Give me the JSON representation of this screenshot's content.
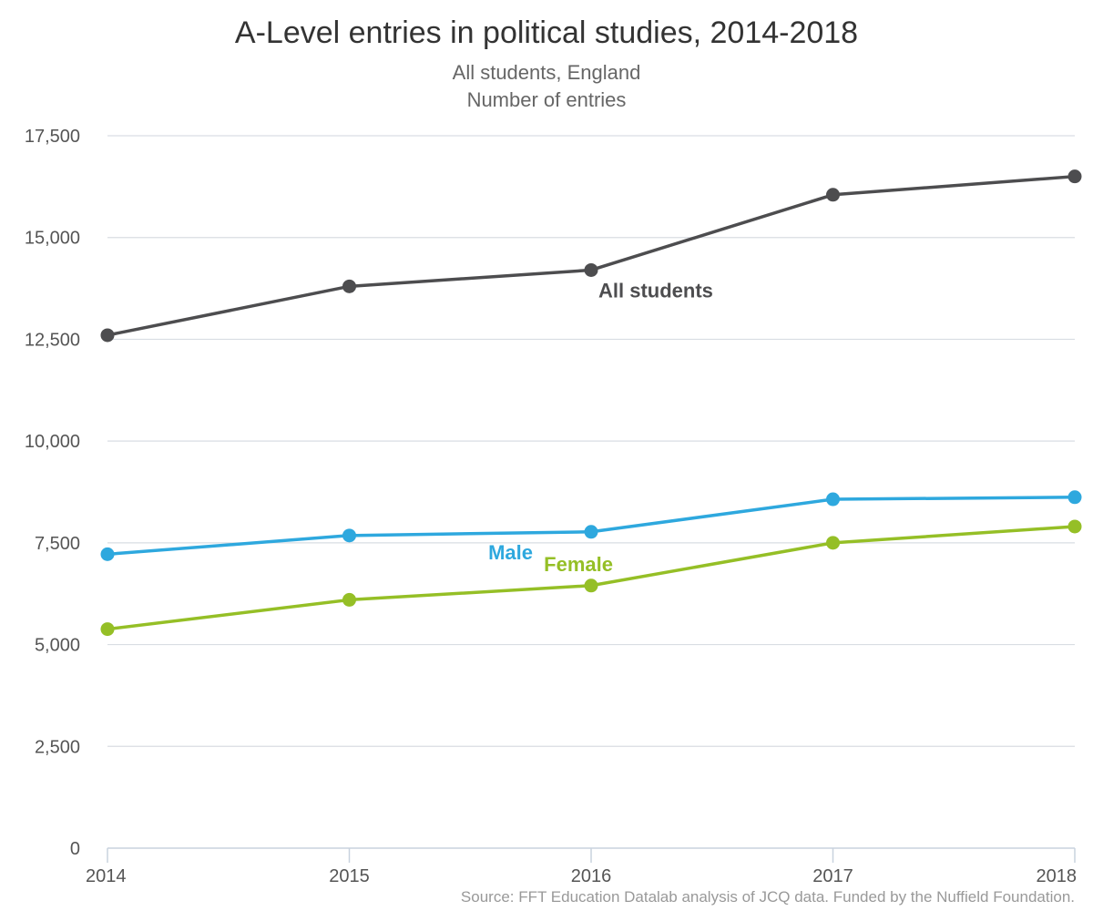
{
  "chart_data": {
    "type": "line",
    "title": "A-Level entries in political studies, 2014-2018",
    "subtitle_lines": [
      "All students, England",
      "Number of entries"
    ],
    "x": [
      "2014",
      "2015",
      "2016",
      "2017",
      "2018"
    ],
    "y_ticks": [
      "0",
      "2,500",
      "5,000",
      "7,500",
      "10,000",
      "12,500",
      "15,000",
      "17,500"
    ],
    "y_tick_values": [
      0,
      2500,
      5000,
      7500,
      10000,
      12500,
      15000,
      17500
    ],
    "ylim": [
      0,
      17500
    ],
    "grid": true,
    "legend": "none",
    "series": [
      {
        "name": "All students",
        "color": "#4d4d4f",
        "values": [
          12600,
          13800,
          14200,
          16050,
          16500
        ]
      },
      {
        "name": "Male",
        "color": "#2ea8de",
        "values": [
          7220,
          7680,
          7770,
          8570,
          8620
        ]
      },
      {
        "name": "Female",
        "color": "#95bf26",
        "values": [
          5380,
          6100,
          6450,
          7500,
          7900
        ]
      }
    ],
    "source": "Source: FFT Education Datalab analysis of JCQ data. Funded by the Nuffield Foundation."
  }
}
